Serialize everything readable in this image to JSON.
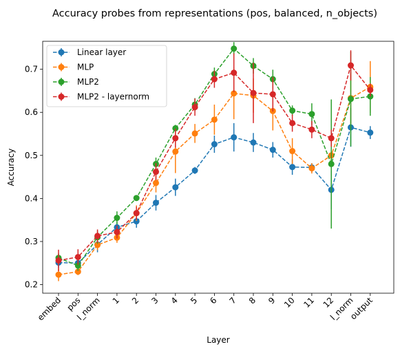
{
  "chart_data": {
    "type": "line",
    "title": "Accuracy probes from representations (pos, balanced, n_objects)",
    "xlabel": "Layer",
    "ylabel": "Accuracy",
    "categories": [
      "embed",
      "pos",
      "l_norm",
      "1",
      "2",
      "3",
      "4",
      "5",
      "6",
      "7",
      "8",
      "9",
      "10",
      "11",
      "12",
      "l_norm",
      "output"
    ],
    "ylim": [
      0.18,
      0.765
    ],
    "yticks": [
      "0.2",
      "0.3",
      "0.4",
      "0.5",
      "0.6",
      "0.7"
    ],
    "grid": false,
    "legend_position": "top-left",
    "series": [
      {
        "name": "Linear layer",
        "color": "#1f77b4",
        "values": [
          0.251,
          0.25,
          0.293,
          0.333,
          0.347,
          0.39,
          0.426,
          0.465,
          0.526,
          0.542,
          0.53,
          0.513,
          0.473,
          0.472,
          0.42,
          0.565,
          0.553
        ],
        "errors": [
          0.012,
          0.015,
          0.018,
          0.012,
          0.015,
          0.018,
          0.02,
          0.008,
          0.02,
          0.033,
          0.022,
          0.018,
          0.018,
          0.01,
          0.045,
          0.045,
          0.015
        ]
      },
      {
        "name": "MLP",
        "color": "#ff7f0e",
        "values": [
          0.223,
          0.23,
          0.292,
          0.309,
          0.366,
          0.436,
          0.509,
          0.551,
          0.583,
          0.644,
          0.639,
          0.603,
          0.51,
          0.47,
          0.5,
          0.633,
          0.659
        ],
        "errors": [
          0.015,
          0.008,
          0.012,
          0.012,
          0.018,
          0.022,
          0.05,
          0.022,
          0.035,
          0.06,
          0.04,
          0.045,
          0.03,
          0.012,
          0.012,
          0.06,
          0.06
        ]
      },
      {
        "name": "MLP2",
        "color": "#2ca02c",
        "values": [
          0.262,
          0.244,
          0.31,
          0.355,
          0.401,
          0.48,
          0.563,
          0.618,
          0.689,
          0.748,
          0.708,
          0.677,
          0.604,
          0.596,
          0.48,
          0.631,
          0.637
        ],
        "errors": [
          0.01,
          0.012,
          0.015,
          0.015,
          0.005,
          0.015,
          0.008,
          0.015,
          0.015,
          0.015,
          0.018,
          0.022,
          0.012,
          0.025,
          0.15,
          0.11,
          0.045
        ]
      },
      {
        "name": "MLP2 - layernorm",
        "color": "#d62728",
        "values": [
          0.256,
          0.264,
          0.313,
          0.322,
          0.366,
          0.462,
          0.54,
          0.612,
          0.677,
          0.692,
          0.645,
          0.642,
          0.575,
          0.56,
          0.54,
          0.709,
          0.652
        ],
        "errors": [
          0.025,
          0.018,
          0.015,
          0.015,
          0.015,
          0.02,
          0.022,
          0.02,
          0.02,
          0.045,
          0.07,
          0.04,
          0.02,
          0.02,
          0.02,
          0.035,
          0.015
        ]
      }
    ]
  }
}
